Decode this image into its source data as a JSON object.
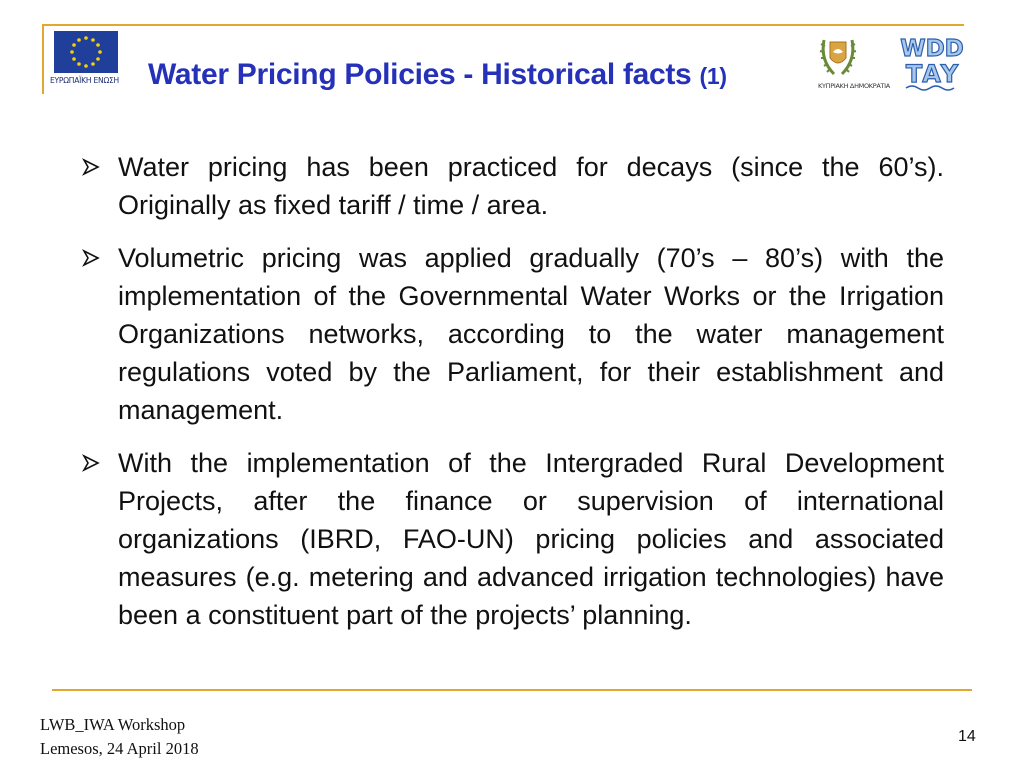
{
  "header": {
    "title": "Water Pricing Policies - Historical facts",
    "title_suffix": "(1)",
    "eu_logo_caption": "ΕΥΡΩΠΑΪΚΗ ΕΝΩΣΗ",
    "cy_logo_caption": "ΚΥΠΡΙΑΚΗ ΔΗΜΟΚΡΑΤΙΑ",
    "wdd_logo_text_top": "WDD",
    "wdd_logo_text_bottom": "ΤΑΥ",
    "brand_color": "#2531b8",
    "rule_color": "#e0a82e"
  },
  "bullets": [
    {
      "text": "Water pricing has been practiced for decays (since the 60’s). Originally as fixed tariff / time / area."
    },
    {
      "text": "Volumetric pricing was applied gradually (70’s – 80’s) with the  implementation of the Governmental Water Works or the Irrigation Organizations networks, according to the water management regulations voted by the Parliament, for their establishment and management."
    },
    {
      "text": "With the implementation of the Intergraded Rural Development Projects, after the finance or supervision of international organizations (IBRD, FAO-UN) pricing policies and associated measures (e.g. metering and advanced irrigation technologies) have been a constituent part of the projects’ planning."
    }
  ],
  "footer": {
    "line1": "LWB_IWA Workshop",
    "line2": "Lemesos, 24 April 2018",
    "page_number": "14"
  }
}
